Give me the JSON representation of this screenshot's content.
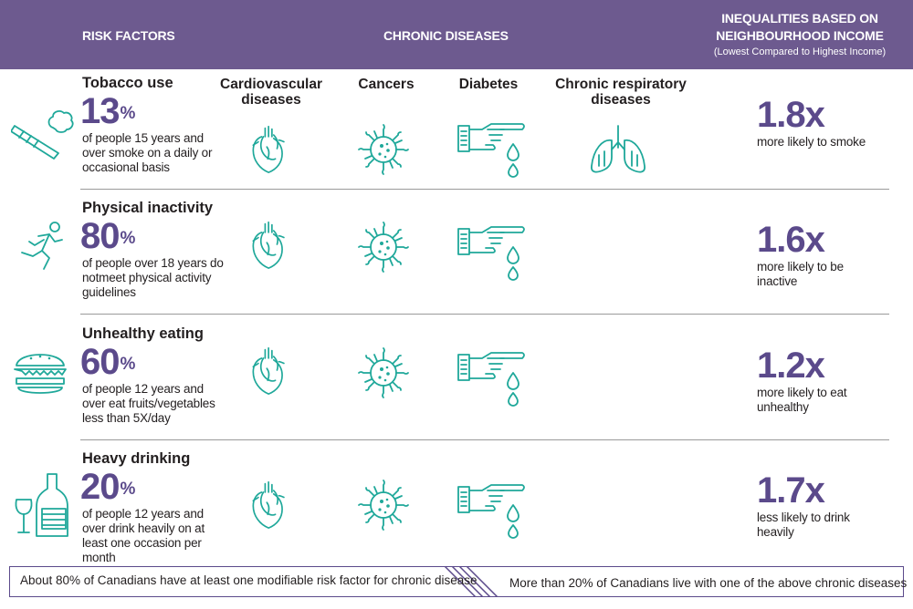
{
  "header": {
    "risk_factors": "RISK FACTORS",
    "chronic_diseases": "CHRONIC DISEASES",
    "inequalities_line1": "INEQUALITIES BASED ON",
    "inequalities_line2": "NEIGHBOURHOOD INCOME",
    "inequalities_sub": "(Lowest Compared to Highest Income)"
  },
  "diseases": {
    "cardio": "Cardiovascular diseases",
    "cancers": "Cancers",
    "diabetes": "Diabetes",
    "respiratory": "Chronic respiratory diseases"
  },
  "rows": [
    {
      "name": "Tobacco use",
      "percent": "13",
      "percent_sign": "%",
      "description": "of people 15 years and over smoke on a daily or occasional basis",
      "ratio": "1.8x",
      "ratio_description": "more likely to smoke",
      "icon": "cigarette-icon"
    },
    {
      "name": "Physical inactivity",
      "percent": "80",
      "percent_sign": "%",
      "description": "of people over 18 years do notmeet physical activity guidelines",
      "ratio": "1.6x",
      "ratio_description": "more likely to be inactive",
      "icon": "running-person-icon"
    },
    {
      "name": "Unhealthy eating",
      "percent": "60",
      "percent_sign": "%",
      "description": "of people 12 years and over eat fruits/vegetables less than 5X/day",
      "ratio": "1.2x",
      "ratio_description": "more likely to eat unhealthy",
      "icon": "burger-icon"
    },
    {
      "name": "Heavy drinking",
      "percent": "20",
      "percent_sign": "%",
      "description": "of people 12 years and over drink heavily on at least one occasion per month",
      "ratio": "1.7x",
      "ratio_description": "less likely to drink heavily",
      "icon": "bottle-and-glass-icon"
    }
  ],
  "footer": {
    "left": "About 80% of Canadians have at least one modifiable risk factor for chronic disease",
    "right": "More than 20% of Canadians live with one of the above chronic diseases"
  },
  "colors": {
    "header_bg": "#6d5a8f",
    "accent_purple": "#5b4a8b",
    "icon_teal": "#1fa89a"
  }
}
